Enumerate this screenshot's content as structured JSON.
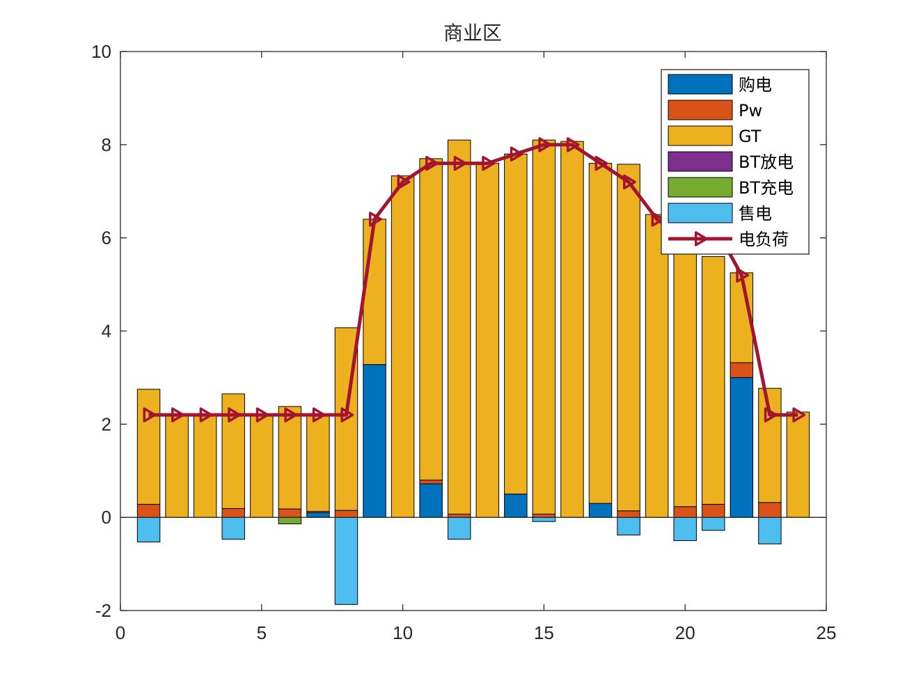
{
  "chart_data": {
    "type": "bar",
    "subtype": "stacked-bar-with-line",
    "title": "商业区",
    "xlabel": "",
    "ylabel": "",
    "xlim": [
      0,
      25
    ],
    "ylim": [
      -2,
      10
    ],
    "xticks": [
      0,
      5,
      10,
      15,
      20,
      25
    ],
    "yticks": [
      -2,
      0,
      2,
      4,
      6,
      8,
      10
    ],
    "grid": false,
    "legend_position": "top-right",
    "x": [
      1,
      2,
      3,
      4,
      5,
      6,
      7,
      8,
      9,
      10,
      11,
      12,
      13,
      14,
      15,
      16,
      17,
      18,
      19,
      20,
      21,
      22,
      23,
      24
    ],
    "series": [
      {
        "name": "购电",
        "color": "#0072BD",
        "values": [
          0,
          0,
          0,
          0,
          0,
          0,
          0.1,
          0,
          3.28,
          0,
          0.72,
          0,
          0,
          0.5,
          0,
          0,
          0.3,
          0,
          0,
          0,
          0,
          3.0,
          0,
          0
        ]
      },
      {
        "name": "Pw",
        "color": "#D95319",
        "values": [
          0.28,
          0,
          0,
          0.19,
          0,
          0.18,
          0.03,
          0.15,
          0,
          0,
          0.08,
          0.07,
          0,
          0,
          0.07,
          0,
          0,
          0.14,
          0,
          0.23,
          0.28,
          0.32,
          0.32,
          0
        ]
      },
      {
        "name": "GT",
        "color": "#EDB120",
        "values": [
          2.47,
          2.2,
          2.2,
          2.46,
          2.2,
          2.2,
          2.07,
          3.92,
          3.12,
          7.33,
          6.9,
          8.03,
          7.6,
          7.3,
          8.03,
          8.07,
          7.3,
          7.44,
          6.5,
          5.57,
          5.32,
          1.93,
          2.45,
          2.26
        ]
      },
      {
        "name": "BT放电",
        "color": "#7E2F8E",
        "values": [
          0,
          0,
          0,
          0,
          0,
          0,
          0,
          0,
          0,
          0,
          0,
          0,
          0,
          0,
          0,
          0,
          0,
          0,
          0,
          0,
          0,
          0,
          0,
          0
        ]
      },
      {
        "name": "BT充电",
        "color": "#77AC30",
        "values": [
          0,
          0,
          0,
          0,
          0,
          -0.14,
          0,
          0,
          0,
          0,
          0,
          0,
          0,
          0,
          0,
          0,
          0,
          0,
          0,
          0,
          0,
          0,
          0,
          0
        ]
      },
      {
        "name": "售电",
        "color": "#4DBEEE",
        "values": [
          -0.53,
          0,
          0,
          -0.47,
          0,
          0,
          0,
          -1.87,
          0,
          0,
          0,
          -0.47,
          0,
          0,
          -0.09,
          0,
          0,
          -0.38,
          0,
          -0.5,
          -0.28,
          0,
          -0.57,
          0
        ]
      }
    ],
    "line": {
      "name": "电负荷",
      "color": "#A2142F",
      "marker": "triangle-right",
      "values": [
        2.2,
        2.2,
        2.2,
        2.2,
        2.2,
        2.2,
        2.2,
        2.2,
        6.4,
        7.2,
        7.6,
        7.6,
        7.6,
        7.8,
        8.0,
        8.0,
        7.6,
        7.2,
        6.4,
        6.0,
        6.3,
        5.2,
        2.2,
        2.2
      ]
    }
  }
}
